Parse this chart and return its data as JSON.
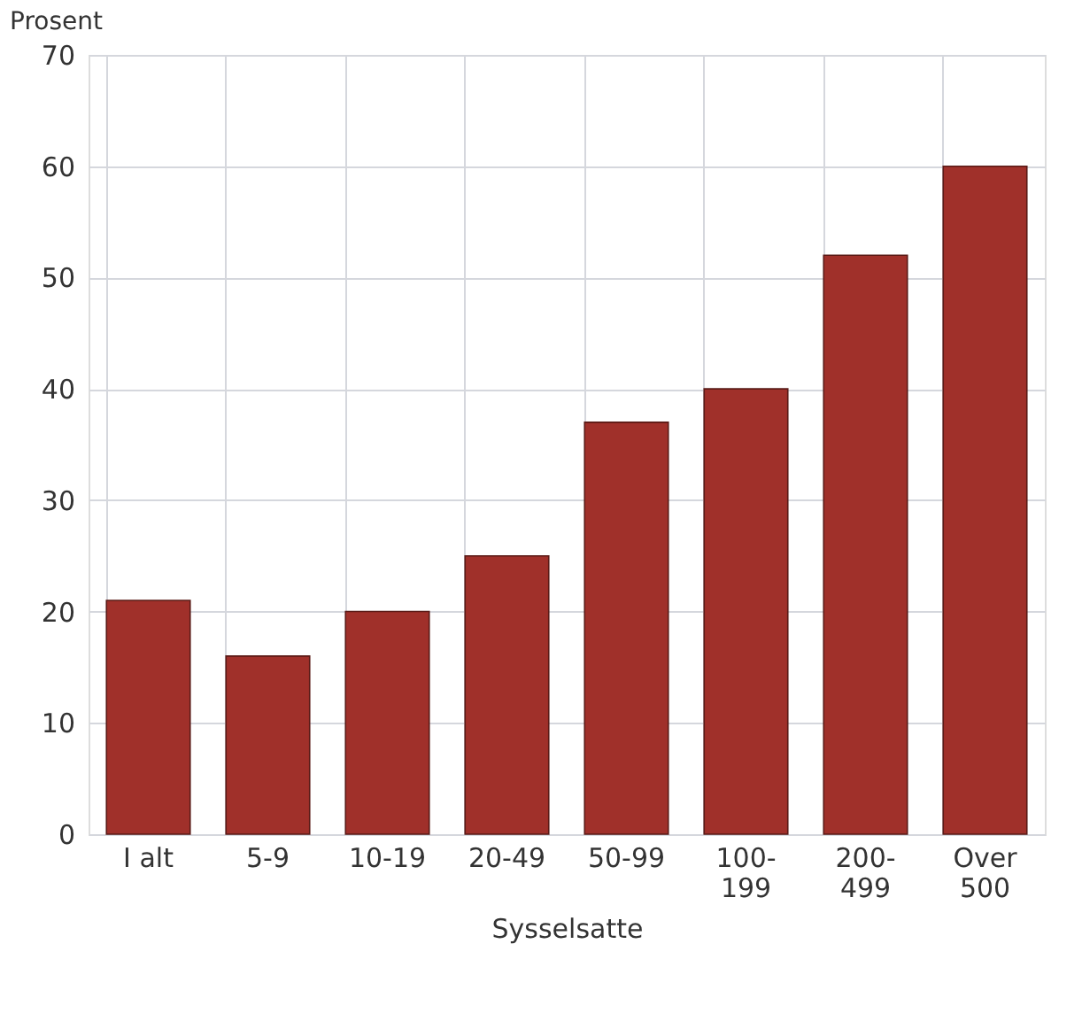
{
  "chart_data": {
    "type": "bar",
    "ylabel": "Prosent",
    "xlabel": "Sysselsatte",
    "categories": [
      "I alt",
      "5-9",
      "10-19",
      "20-49",
      "50-99",
      "100-199",
      "200-499",
      "Over 500"
    ],
    "values": [
      21,
      16,
      20,
      25,
      37,
      40,
      52,
      60
    ],
    "color": "#a0302a",
    "ylim": [
      0,
      70
    ],
    "yticks": [
      0,
      10,
      20,
      30,
      40,
      50,
      60,
      70
    ],
    "grid": true
  }
}
